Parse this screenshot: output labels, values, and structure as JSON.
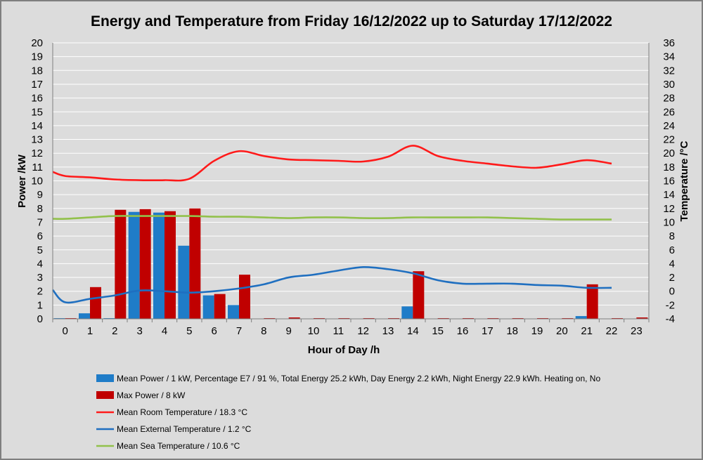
{
  "chart_data": {
    "type": "bar",
    "title": "Energy and Temperature from Friday 16/12/2022 up to Saturday 17/12/2022",
    "xlabel": "Hour of Day /h",
    "ylabel": "Power /kW",
    "y2label": "Temperature /°C",
    "categories": [
      "0",
      "1",
      "2",
      "3",
      "4",
      "5",
      "6",
      "7",
      "8",
      "9",
      "10",
      "11",
      "12",
      "13",
      "14",
      "15",
      "16",
      "17",
      "18",
      "19",
      "20",
      "21",
      "22",
      "23"
    ],
    "ylim": [
      0,
      20
    ],
    "y_ticks": [
      "0",
      "1",
      "2",
      "3",
      "4",
      "5",
      "6",
      "7",
      "8",
      "9",
      "10",
      "11",
      "12",
      "13",
      "14",
      "15",
      "16",
      "17",
      "18",
      "19",
      "20"
    ],
    "y2lim": [
      -4,
      36
    ],
    "y2_ticks": [
      "-4",
      "-2",
      "0",
      "2",
      "4",
      "6",
      "8",
      "10",
      "12",
      "14",
      "16",
      "18",
      "20",
      "22",
      "24",
      "26",
      "28",
      "30",
      "32",
      "34",
      "36"
    ],
    "grid": true,
    "legend_position": "bottom",
    "colors": {
      "background": "#dcdcdc",
      "mean_power": "#1f7cc8",
      "max_power": "#c00000",
      "room_temp": "#ff1a1a",
      "external_temp": "#1f6fc0",
      "sea_temp": "#92c14b"
    },
    "bar_series": [
      {
        "name": "Mean Power / 1 kW, Percentage E7 / 91 %, Total Energy 25.2 kWh, Day Energy 2.2 kWh, Night Energy 22.9 kWh. Heating on, No",
        "color": "#1f7cc8",
        "values": [
          0.05,
          0.4,
          0.05,
          7.75,
          7.7,
          5.3,
          1.7,
          1.0,
          0,
          0,
          0,
          0,
          0,
          0,
          0.9,
          0,
          0,
          0,
          0,
          0,
          0,
          0.2,
          0,
          0
        ]
      },
      {
        "name": "Max Power / 8 kW",
        "color": "#c00000",
        "values": [
          0.05,
          2.3,
          7.9,
          7.95,
          7.8,
          8.0,
          1.8,
          3.2,
          0.05,
          0.1,
          0.05,
          0.05,
          0.05,
          0.05,
          3.45,
          0.05,
          0.05,
          0.05,
          0.05,
          0.05,
          0.05,
          2.5,
          0.05,
          0.1
        ]
      }
    ],
    "line_series": [
      {
        "name": "Mean Room Temperature / 18.3 °C",
        "color": "#ff1a1a",
        "x": [
          -0.5,
          0,
          1,
          2,
          3,
          4,
          5,
          6,
          7,
          8,
          9,
          10,
          11,
          12,
          13,
          14,
          15,
          16,
          17,
          18,
          19,
          20,
          21,
          22
        ],
        "values": [
          17.3,
          16.7,
          16.5,
          16.2,
          16.1,
          16.1,
          16.3,
          18.9,
          20.3,
          19.6,
          19.1,
          19.0,
          18.9,
          18.8,
          19.5,
          21.1,
          19.6,
          18.9,
          18.5,
          18.1,
          17.9,
          18.4,
          19.0,
          18.5
        ],
        "axis": "right"
      },
      {
        "name": "Mean External Temperature / 1.2 °C",
        "color": "#1f6fc0",
        "x": [
          -0.5,
          0,
          1,
          2,
          3,
          4,
          5,
          6,
          7,
          8,
          9,
          10,
          11,
          12,
          13,
          14,
          15,
          16,
          17,
          18,
          19,
          20,
          21,
          22
        ],
        "values": [
          0.2,
          -1.6,
          -1.1,
          -0.6,
          0.1,
          0.0,
          -0.2,
          0.0,
          0.4,
          1.0,
          2.0,
          2.4,
          3.0,
          3.5,
          3.2,
          2.6,
          1.6,
          1.1,
          1.1,
          1.1,
          0.9,
          0.8,
          0.5,
          0.5
        ],
        "axis": "right"
      },
      {
        "name": "Mean Sea Temperature / 10.6 °C",
        "color": "#92c14b",
        "x": [
          -0.5,
          0,
          1,
          2,
          3,
          4,
          5,
          6,
          7,
          8,
          9,
          10,
          11,
          12,
          13,
          14,
          15,
          16,
          17,
          18,
          19,
          20,
          21,
          22
        ],
        "values": [
          10.5,
          10.5,
          10.7,
          10.9,
          10.9,
          10.9,
          10.9,
          10.8,
          10.8,
          10.7,
          10.6,
          10.7,
          10.7,
          10.6,
          10.6,
          10.7,
          10.7,
          10.7,
          10.7,
          10.6,
          10.5,
          10.4,
          10.4,
          10.4
        ],
        "axis": "right"
      }
    ]
  }
}
